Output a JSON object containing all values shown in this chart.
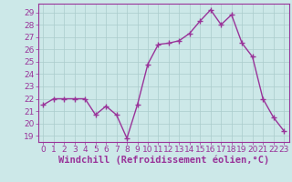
{
  "x": [
    0,
    1,
    2,
    3,
    4,
    5,
    6,
    7,
    8,
    9,
    10,
    11,
    12,
    13,
    14,
    15,
    16,
    17,
    18,
    19,
    20,
    21,
    22,
    23
  ],
  "y": [
    21.5,
    22.0,
    22.0,
    22.0,
    22.0,
    20.7,
    21.4,
    20.7,
    18.8,
    21.5,
    24.8,
    26.4,
    26.5,
    26.7,
    27.3,
    28.3,
    29.2,
    28.0,
    28.8,
    26.5,
    25.4,
    22.0,
    20.5,
    19.4
  ],
  "line_color": "#993399",
  "marker": "+",
  "marker_size": 4,
  "xlabel": "Windchill (Refroidissement éolien,°C)",
  "xlim": [
    -0.5,
    23.5
  ],
  "ylim": [
    18.5,
    29.7
  ],
  "yticks": [
    19,
    20,
    21,
    22,
    23,
    24,
    25,
    26,
    27,
    28,
    29
  ],
  "xticks": [
    0,
    1,
    2,
    3,
    4,
    5,
    6,
    7,
    8,
    9,
    10,
    11,
    12,
    13,
    14,
    15,
    16,
    17,
    18,
    19,
    20,
    21,
    22,
    23
  ],
  "background_color": "#cce8e8",
  "grid_color": "#aacccc",
  "tick_label_fontsize": 6.5,
  "xlabel_fontsize": 7.5,
  "line_width": 1.0
}
